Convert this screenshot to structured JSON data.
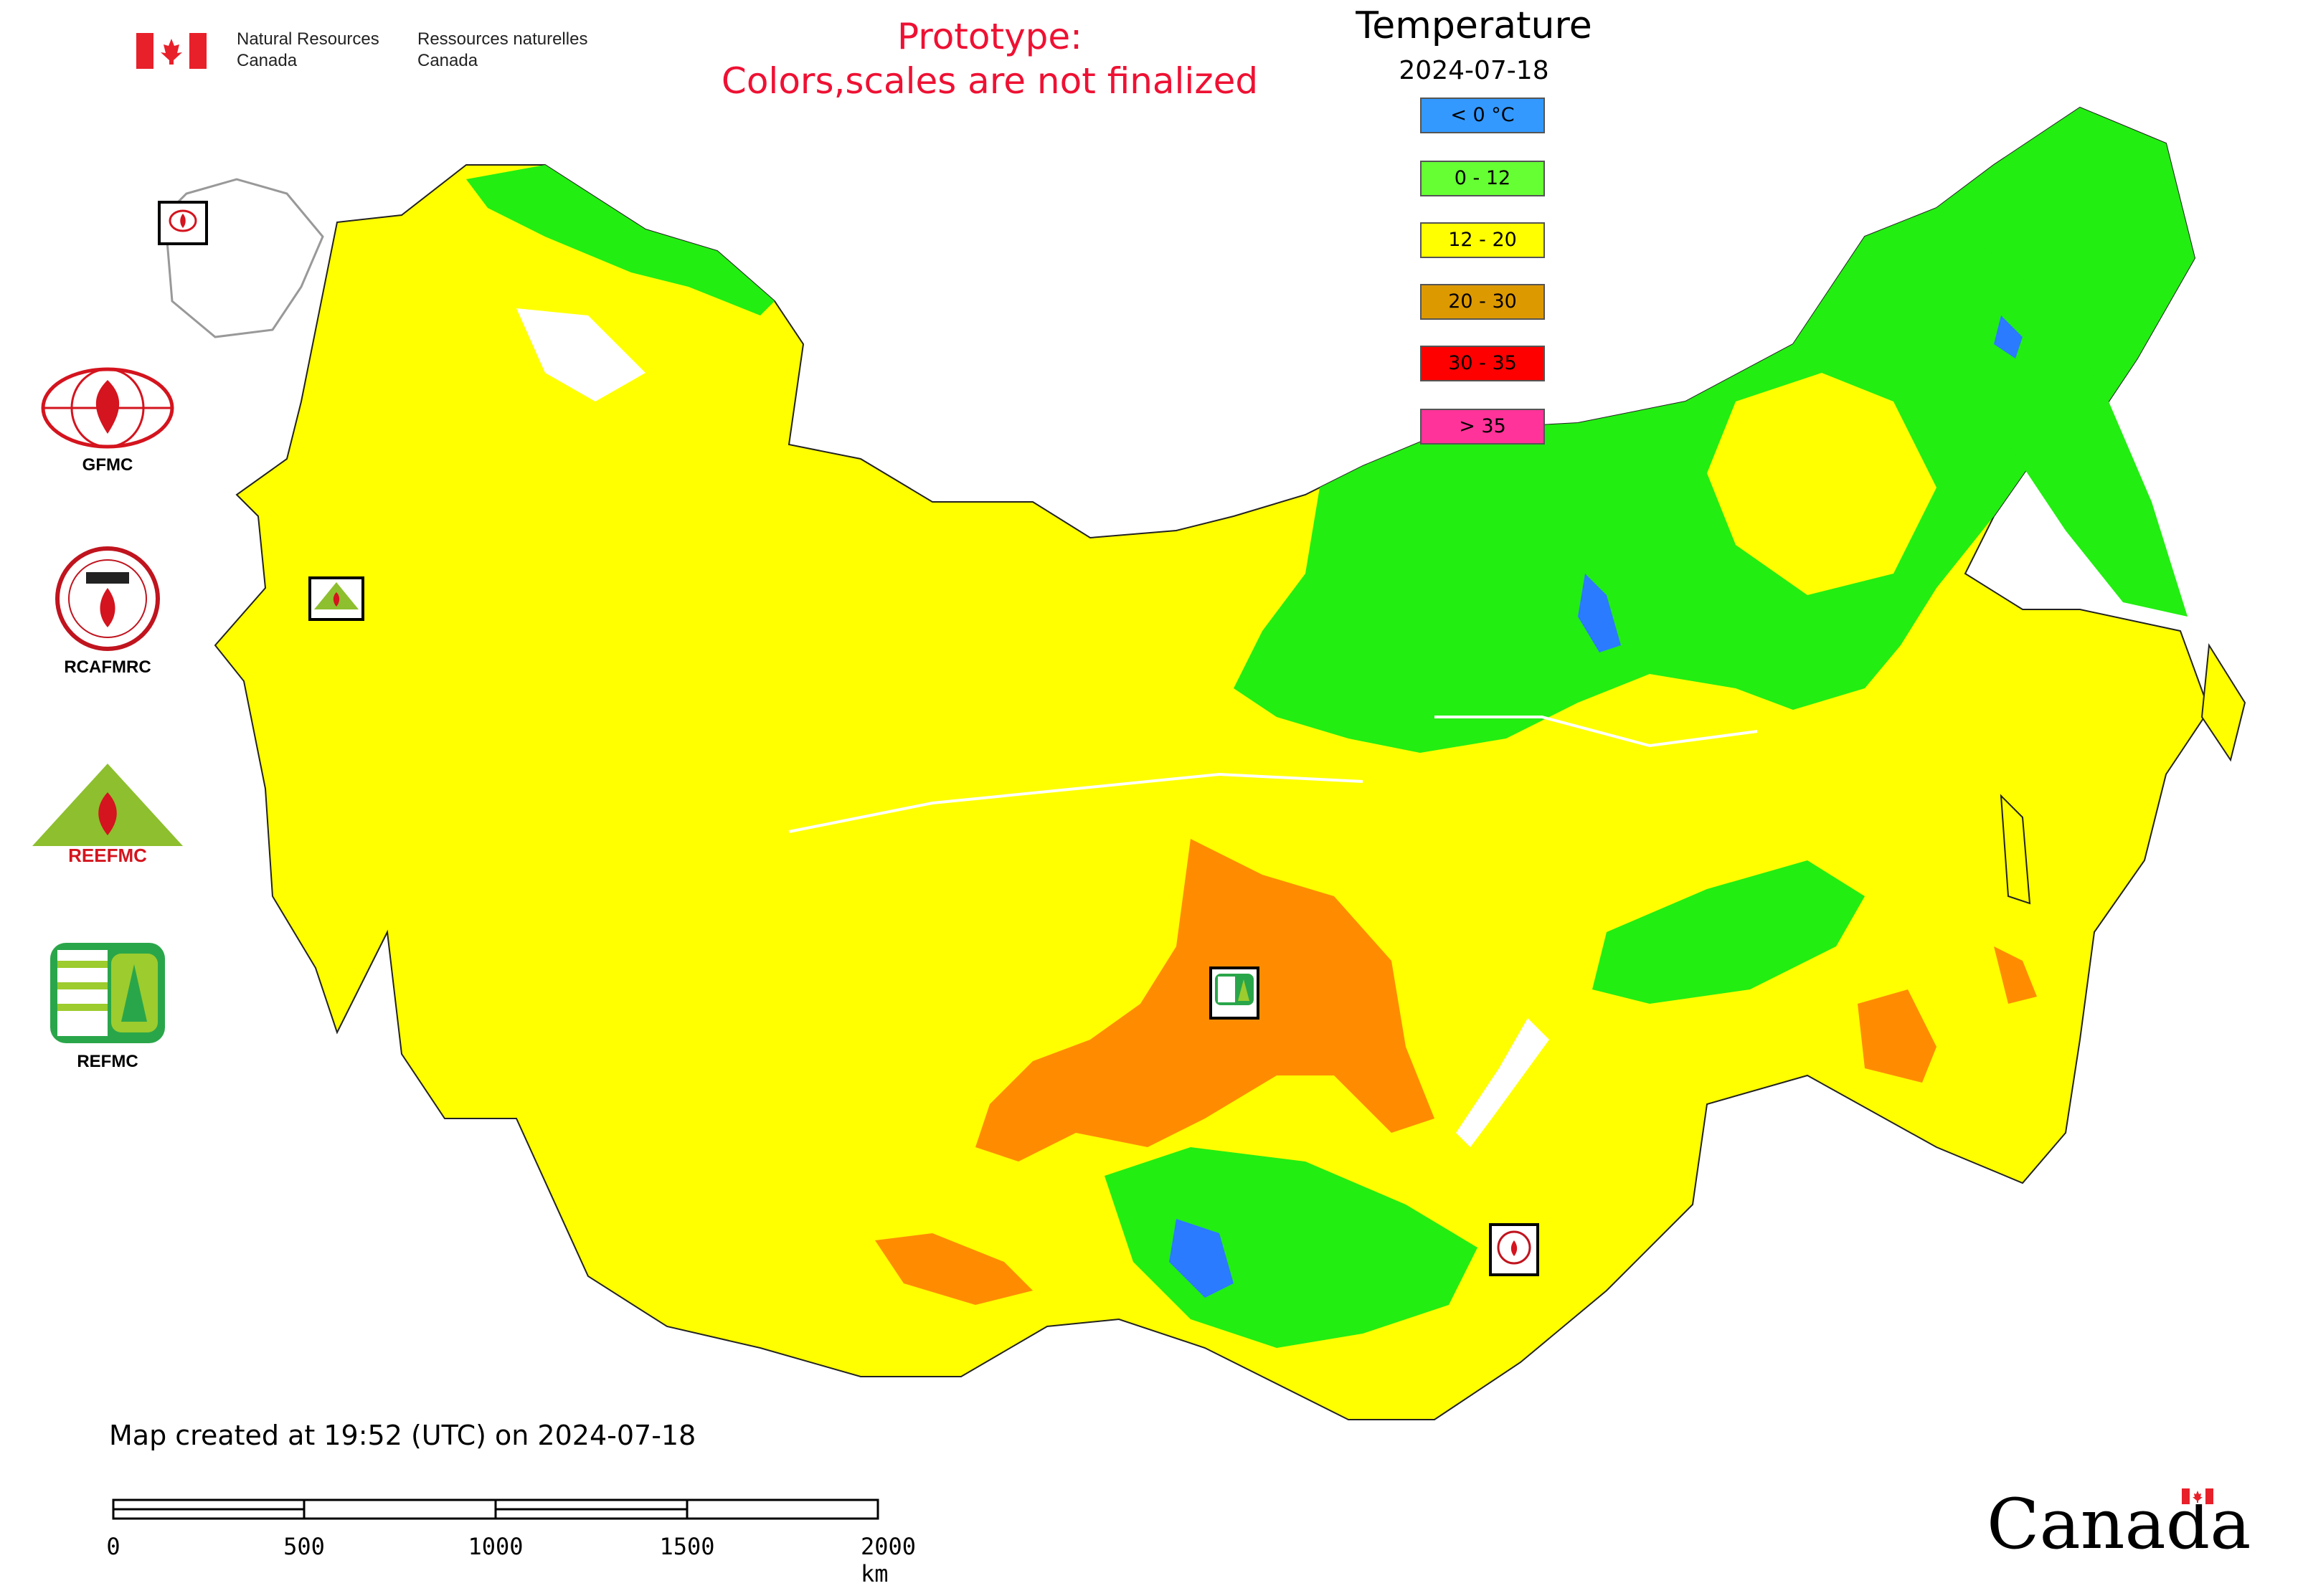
{
  "header": {
    "department_en": "Natural Resources\nCanada",
    "department_fr": "Ressources naturelles\nCanada",
    "prototype_line1": "Prototype:",
    "prototype_line2": "Colors,scales are not finalized"
  },
  "legend": {
    "title": "Temperature",
    "date": "2024-07-18",
    "classes": [
      {
        "label": "< 0 °C",
        "color": "#3399ff"
      },
      {
        "label": "0 - 12",
        "color": "#66ff33"
      },
      {
        "label": "12 - 20",
        "color": "#ffff00"
      },
      {
        "label": "20 - 30",
        "color": "#dd9900"
      },
      {
        "label": "30 - 35",
        "color": "#ff0000"
      },
      {
        "label": "> 35",
        "color": "#ff3399"
      }
    ]
  },
  "agencies": [
    {
      "name": "GFMC",
      "icon": "gfmc-logo-icon"
    },
    {
      "name": "RCAFMRC",
      "icon": "rcafmrc-logo-icon"
    },
    {
      "name": "REEFMC",
      "icon": "reefmc-logo-icon"
    },
    {
      "name": "REFMC",
      "icon": "refmc-logo-icon"
    }
  ],
  "map_markers": [
    {
      "label": "GFMC",
      "icon": "gfmc-marker-icon"
    },
    {
      "label": "REEFMC",
      "icon": "reefmc-marker-icon"
    },
    {
      "label": "REFMC",
      "icon": "refmc-marker-icon"
    },
    {
      "label": "RCAFMRC",
      "icon": "rcafmrc-marker-icon"
    }
  ],
  "footer": {
    "created": "Map created at 19:52 (UTC) on 2024-07-18",
    "scale_labels": [
      "0",
      "500",
      "1000",
      "1500",
      "2000 km"
    ],
    "wordmark": "Canada"
  },
  "colors": {
    "warm": "#ffff00",
    "cool": "#22ee11",
    "hot": "#ff8c00",
    "cold": "#2a7bff",
    "alert_text": "#ee1133"
  }
}
